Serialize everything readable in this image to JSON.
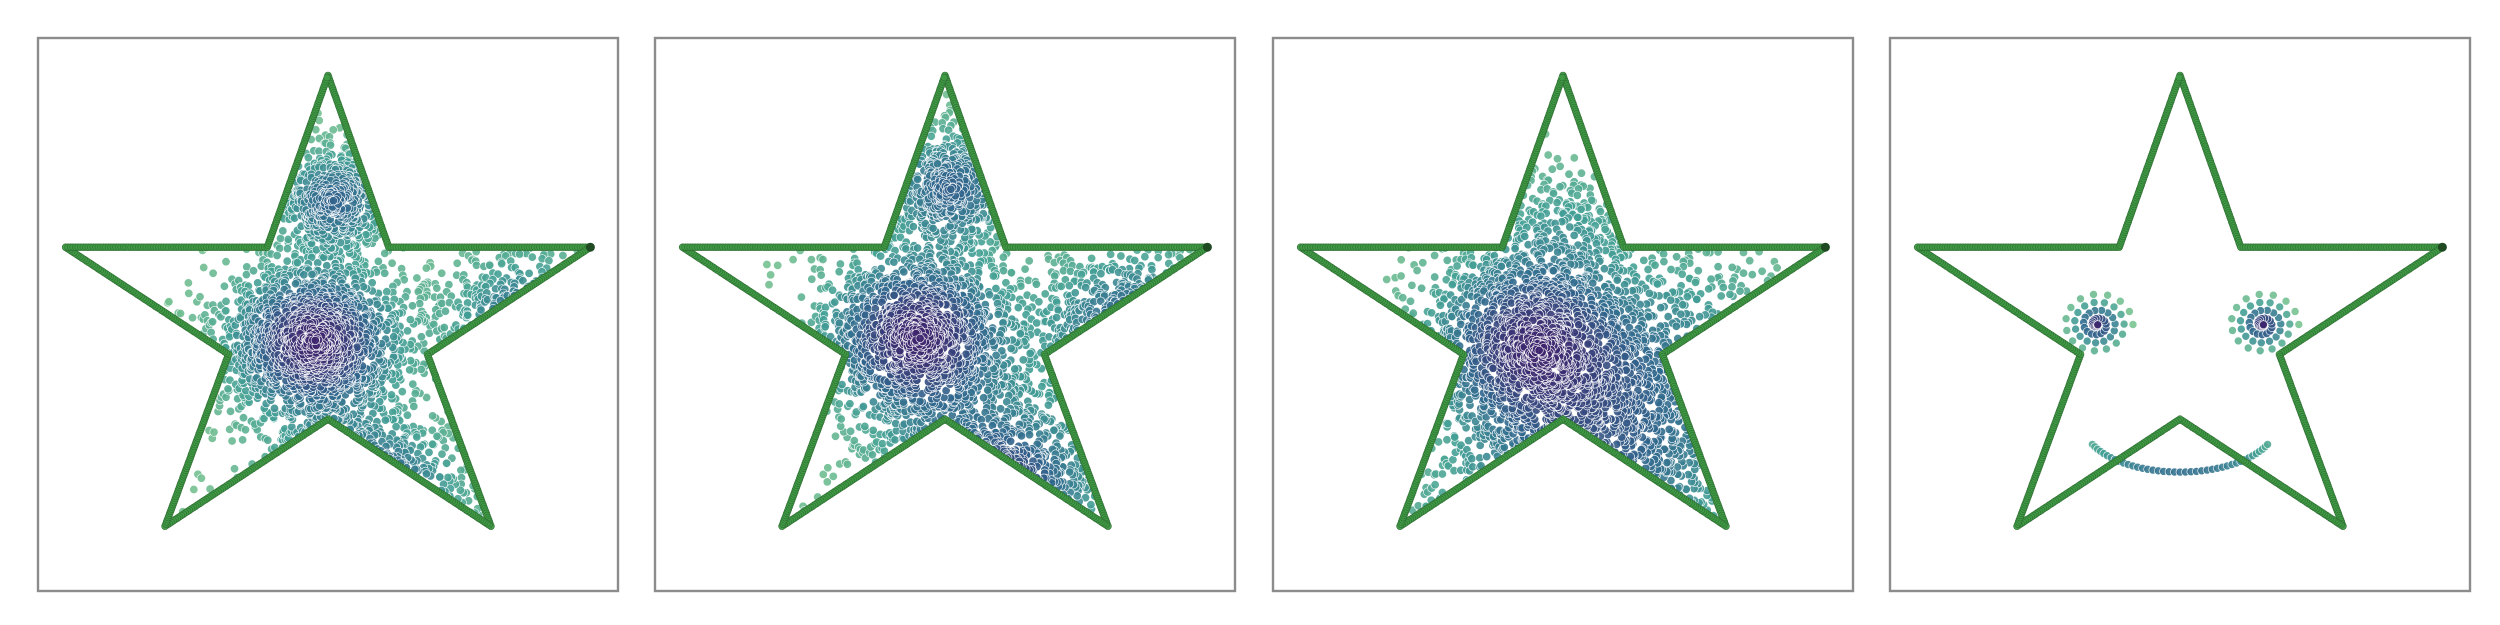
{
  "chart_data": [
    {
      "type": "scatter",
      "title": "",
      "xlabel": "",
      "ylabel": "",
      "axes_visible": false,
      "grid": false,
      "legend": "none",
      "colormap": "viridis-green-to-purple",
      "outline_color": "#3f9a45",
      "clusters": [
        {
          "cx": 0.95,
          "cy": 0.38,
          "spread": 0.18,
          "weight": 0.32
        },
        {
          "cx": 1.12,
          "cy": -0.28,
          "spread": 0.2,
          "weight": 0.3
        },
        {
          "cx": 1.72,
          "cy": 0.45,
          "spread": 0.17,
          "weight": 0.16
        },
        {
          "cx": 0.55,
          "cy": -0.72,
          "spread": 0.13,
          "weight": 0.1
        },
        {
          "cx": 1.02,
          "cy": 0.95,
          "spread": 0.12,
          "weight": 0.12
        }
      ]
    },
    {
      "type": "scatter",
      "title": "",
      "xlabel": "",
      "ylabel": "",
      "axes_visible": false,
      "grid": false,
      "legend": "none",
      "colormap": "viridis-green-to-purple",
      "outline_color": "#3f9a45",
      "clusters": [
        {
          "cx": 0.9,
          "cy": 0.4,
          "spread": 0.2,
          "weight": 0.3
        },
        {
          "cx": 1.18,
          "cy": -0.22,
          "spread": 0.22,
          "weight": 0.28
        },
        {
          "cx": 1.68,
          "cy": 0.42,
          "spread": 0.2,
          "weight": 0.18
        },
        {
          "cx": 0.55,
          "cy": -0.68,
          "spread": 0.16,
          "weight": 0.12
        },
        {
          "cx": 1.02,
          "cy": 1.0,
          "spread": 0.14,
          "weight": 0.12
        }
      ]
    },
    {
      "type": "scatter",
      "title": "",
      "xlabel": "",
      "ylabel": "",
      "axes_visible": false,
      "grid": false,
      "legend": "none",
      "colormap": "viridis-green-to-purple",
      "outline_color": "#3f9a45",
      "clusters": [
        {
          "cx": 0.88,
          "cy": 0.38,
          "spread": 0.22,
          "weight": 0.38
        },
        {
          "cx": 1.15,
          "cy": -0.1,
          "spread": 0.3,
          "weight": 0.32
        },
        {
          "cx": 1.45,
          "cy": 0.35,
          "spread": 0.26,
          "weight": 0.14
        },
        {
          "cx": 0.7,
          "cy": -0.45,
          "spread": 0.24,
          "weight": 0.1
        },
        {
          "cx": 1.0,
          "cy": 0.85,
          "spread": 0.16,
          "weight": 0.06
        }
      ]
    },
    {
      "type": "scatter",
      "title": "",
      "xlabel": "",
      "ylabel": "",
      "axes_visible": false,
      "grid": false,
      "legend": "none",
      "colormap": "viridis-green-to-purple",
      "outline_color": "#3f9a45",
      "face": {
        "left_eye": {
          "cx": 0.7,
          "cy": 0.45,
          "r": 0.13
        },
        "right_eye": {
          "cx": 1.3,
          "cy": 0.45,
          "r": 0.13
        },
        "smile": {
          "cx": 1.0,
          "cy": 0.05,
          "r": 0.35,
          "start_deg": 205,
          "end_deg": 335
        }
      }
    }
  ]
}
